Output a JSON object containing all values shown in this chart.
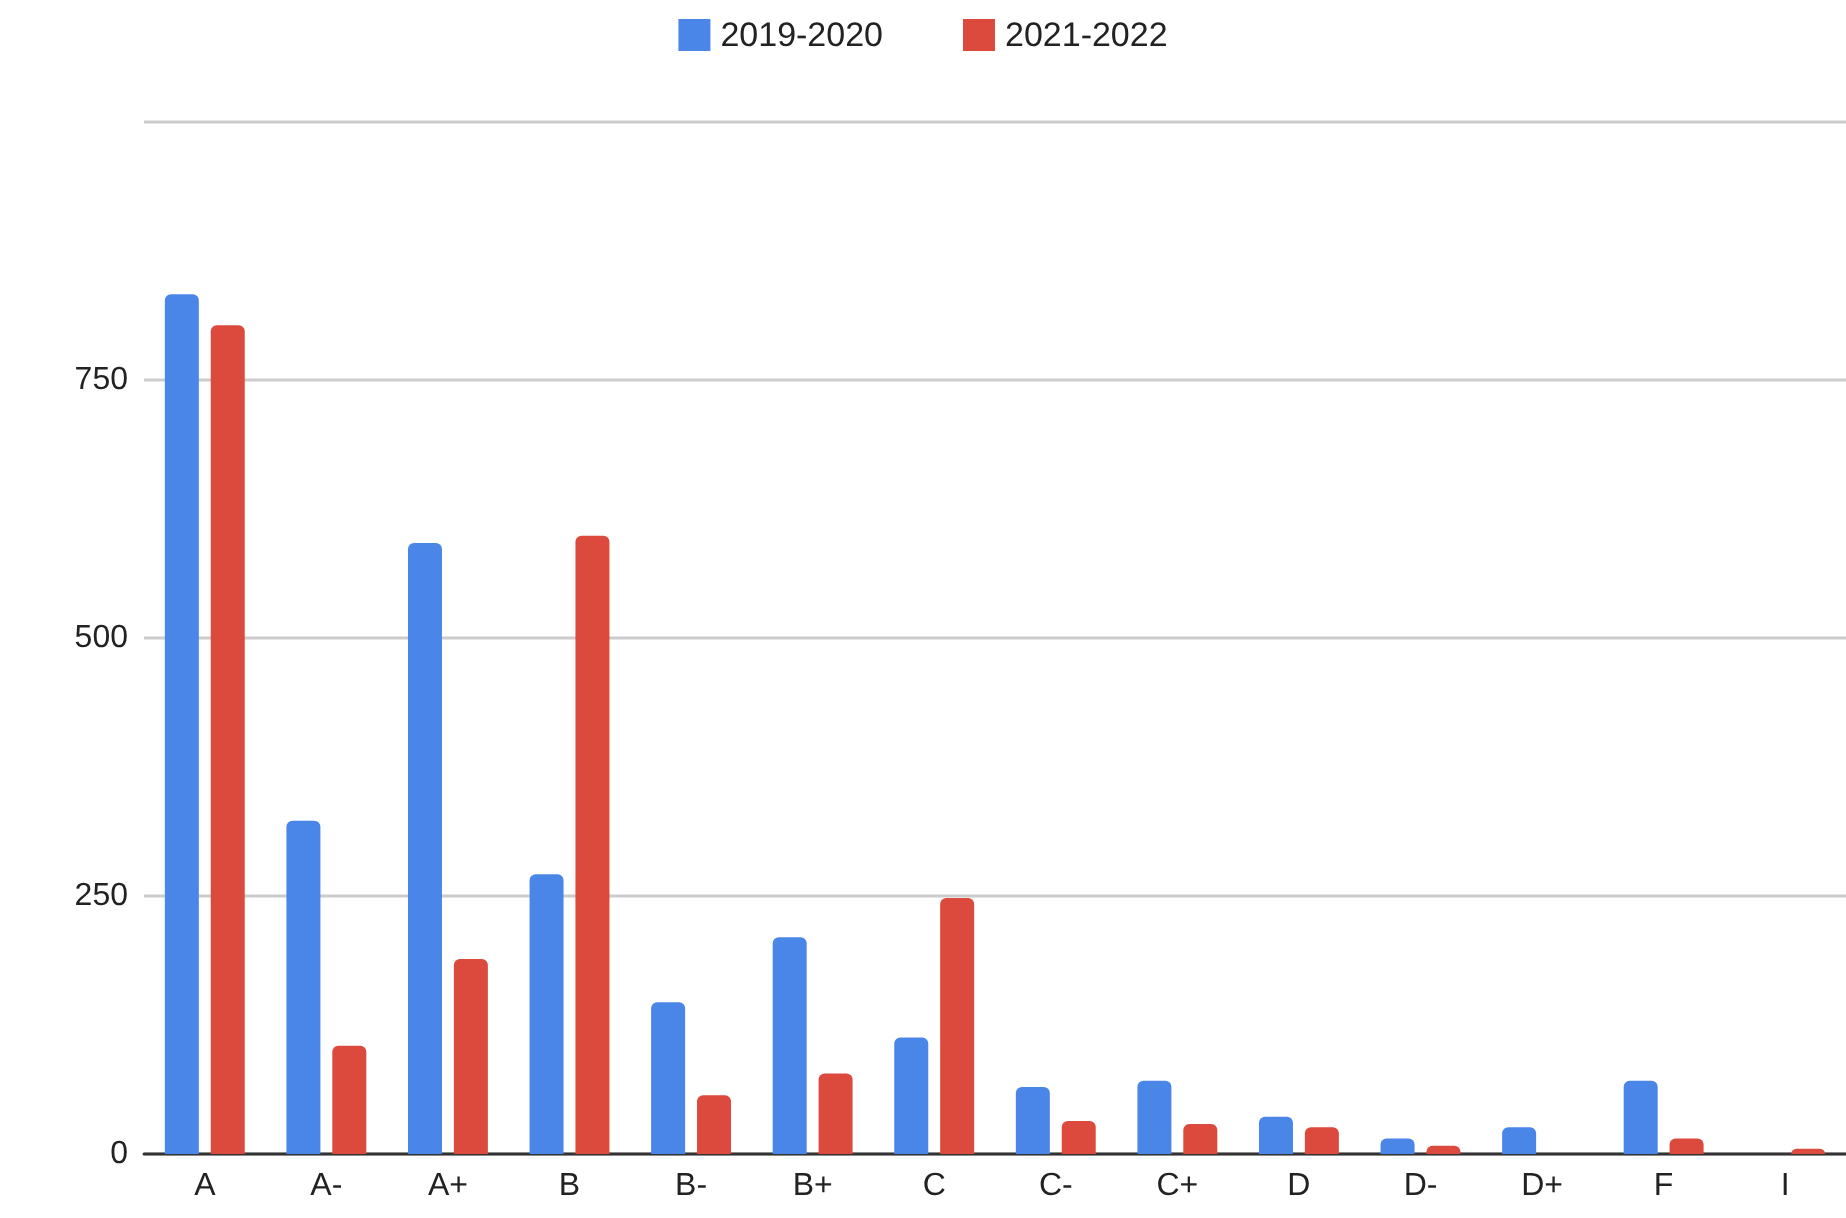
{
  "chart_data": {
    "type": "bar",
    "categories": [
      "A",
      "A-",
      "A+",
      "B",
      "B-",
      "B+",
      "C",
      "C-",
      "C+",
      "D",
      "D-",
      "D+",
      "F",
      "I"
    ],
    "series": [
      {
        "name": "2019-2020",
        "color": "#4a86e8",
        "values": [
          833,
          323,
          592,
          271,
          147,
          210,
          113,
          65,
          71,
          36,
          15,
          26,
          71,
          null
        ]
      },
      {
        "name": "2021-2022",
        "color": "#db4a3c",
        "values": [
          803,
          105,
          189,
          599,
          57,
          78,
          248,
          32,
          29,
          26,
          8,
          null,
          15,
          5
        ]
      }
    ],
    "ylim": [
      0,
      1000
    ],
    "yticks": [
      0,
      250,
      500,
      750,
      {
        "value": 1000,
        "label": null
      }
    ],
    "grid": "y",
    "legend": "top"
  }
}
